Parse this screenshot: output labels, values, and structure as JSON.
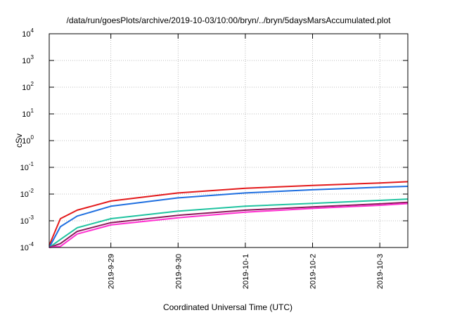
{
  "chart_data": {
    "type": "line",
    "title": "/data/run/goesPlots/archive/2019-10-03/10:00/bryn/../bryn/5daysMarsAccumulated.plot",
    "xlabel": "Coordinated Universal Time (UTC)",
    "ylabel": "cSv",
    "yscale": "log",
    "ylim": [
      0.0001,
      10000
    ],
    "xlim": [
      "2019-09-28T02:00",
      "2019-10-03T10:00"
    ],
    "grid": true,
    "x_ticks": [
      "2019-9-29",
      "2019-9-30",
      "2019-10-1",
      "2019-10-2",
      "2019-10-3"
    ],
    "y_ticks": [
      {
        "base": "10",
        "exp": "-4"
      },
      {
        "base": "10",
        "exp": "-3"
      },
      {
        "base": "10",
        "exp": "-2"
      },
      {
        "base": "10",
        "exp": "-1"
      },
      {
        "base": "10",
        "exp": "0"
      },
      {
        "base": "10",
        "exp": "1"
      },
      {
        "base": "10",
        "exp": "2"
      },
      {
        "base": "10",
        "exp": "3"
      },
      {
        "base": "10",
        "exp": "4"
      }
    ],
    "x": [
      "2019-09-28T02:00",
      "2019-09-28T06:00",
      "2019-09-28T12:00",
      "2019-09-29T00:00",
      "2019-09-30T00:00",
      "2019-10-01T00:00",
      "2019-10-02T00:00",
      "2019-10-03T00:00",
      "2019-10-03T10:00"
    ],
    "series": [
      {
        "color": "#e31a1c",
        "values": [
          0.00012,
          0.0012,
          0.0025,
          0.0055,
          0.011,
          0.0165,
          0.021,
          0.026,
          0.029
        ]
      },
      {
        "color": "#1f6fe0",
        "values": [
          0.0001,
          0.0006,
          0.0015,
          0.0035,
          0.0072,
          0.011,
          0.0145,
          0.018,
          0.0195
        ]
      },
      {
        "color": "#20c3a0",
        "values": [
          0.0001,
          0.0002,
          0.00055,
          0.0012,
          0.0023,
          0.0035,
          0.0045,
          0.0058,
          0.0065
        ]
      },
      {
        "color": "#8b1a5a",
        "values": [
          0.0001,
          0.00014,
          0.0004,
          0.00085,
          0.0016,
          0.0025,
          0.0033,
          0.0043,
          0.0049
        ]
      },
      {
        "color": "#ff2fd0",
        "values": [
          0.0001,
          0.00011,
          0.00032,
          0.0007,
          0.0013,
          0.0021,
          0.0029,
          0.0038,
          0.0044
        ]
      }
    ]
  }
}
